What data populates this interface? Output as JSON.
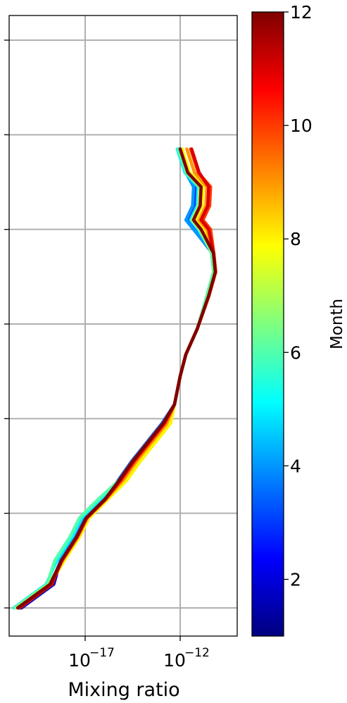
{
  "chart_data": {
    "type": "line",
    "title": "",
    "xlabel": "Mixing ratio",
    "ylabel": "",
    "x_scale": "log",
    "x_ticks": [
      {
        "value": 1e-17,
        "base": "10",
        "exponent": "−17"
      },
      {
        "value": 1e-12,
        "base": "10",
        "exponent": "−12"
      }
    ],
    "xlim": [
      1e-21,
      1e-09
    ],
    "y_ticks": [
      1,
      2,
      3,
      4,
      5,
      6,
      7
    ],
    "ylim": [
      0.7,
      7.3
    ],
    "y_tick_labels_visible": false,
    "grid": true,
    "colorbar": {
      "label": "Month",
      "range": [
        1,
        12
      ],
      "ticks": [
        2,
        4,
        6,
        8,
        10,
        12
      ],
      "colormap": "jet",
      "colormap_stops": [
        "#00007f",
        "#0000ff",
        "#007fff",
        "#00ffff",
        "#7fff7f",
        "#ffff00",
        "#ff7f00",
        "#ff0000",
        "#7f0000"
      ]
    },
    "profile_log10": [
      [
        -20.6,
        1.0
      ],
      [
        -18.9,
        1.25
      ],
      [
        -18.3,
        1.5
      ],
      [
        -17.5,
        1.75
      ],
      [
        -17.0,
        1.95
      ],
      [
        -16.0,
        2.15
      ],
      [
        -15.2,
        2.35
      ],
      [
        -14.5,
        2.55
      ],
      [
        -13.7,
        2.75
      ],
      [
        -12.9,
        2.95
      ],
      [
        -12.3,
        3.15
      ],
      [
        -12.0,
        3.45
      ],
      [
        -11.7,
        3.68
      ],
      [
        -11.1,
        3.95
      ],
      [
        -10.5,
        4.3
      ],
      [
        -10.15,
        4.55
      ],
      [
        -10.25,
        4.75
      ],
      [
        -10.9,
        5.0
      ],
      [
        -11.3,
        5.1
      ],
      [
        -10.95,
        5.25
      ],
      [
        -10.9,
        5.45
      ],
      [
        -11.6,
        5.6
      ],
      [
        -12.0,
        5.85
      ]
    ],
    "series": [
      {
        "month": 1,
        "offsets": [
          0.25,
          0.0,
          -0.05,
          0.0,
          -0.06,
          -0.38,
          0.0
        ]
      },
      {
        "month": 2,
        "offsets": [
          0.22,
          0.0,
          -0.03,
          0.0,
          -0.05,
          -0.32,
          0.0
        ]
      },
      {
        "month": 3,
        "offsets": [
          0.18,
          0.0,
          -0.05,
          0.0,
          -0.04,
          -0.28,
          -0.1
        ]
      },
      {
        "month": 4,
        "offsets": [
          0.12,
          0.0,
          -0.02,
          0.0,
          -0.03,
          -0.4,
          -0.1
        ]
      },
      {
        "month": 5,
        "offsets": [
          -0.15,
          -0.2,
          0.0,
          0.0,
          -0.02,
          -0.15,
          -0.15
        ]
      },
      {
        "month": 6,
        "offsets": [
          -0.1,
          -0.3,
          0.0,
          0.0,
          -0.1,
          -0.1,
          -0.1
        ]
      },
      {
        "month": 7,
        "offsets": [
          0.0,
          0.1,
          0.2,
          0.0,
          -0.02,
          -0.05,
          0.0
        ]
      },
      {
        "month": 8,
        "offsets": [
          0.05,
          0.2,
          0.4,
          0.0,
          0.0,
          0.1,
          0.1
        ]
      },
      {
        "month": 9,
        "offsets": [
          0.08,
          0.1,
          0.2,
          0.0,
          0.02,
          0.3,
          0.35
        ]
      },
      {
        "month": 10,
        "offsets": [
          0.1,
          0.1,
          0.1,
          0.0,
          0.02,
          0.5,
          0.55
        ]
      },
      {
        "month": 11,
        "offsets": [
          0.15,
          0.05,
          0.05,
          0.0,
          0.0,
          0.4,
          0.6
        ]
      },
      {
        "month": 12,
        "offsets": [
          0.05,
          0.05,
          0.0,
          0.0,
          0.0,
          0.0,
          0.0
        ]
      }
    ]
  }
}
